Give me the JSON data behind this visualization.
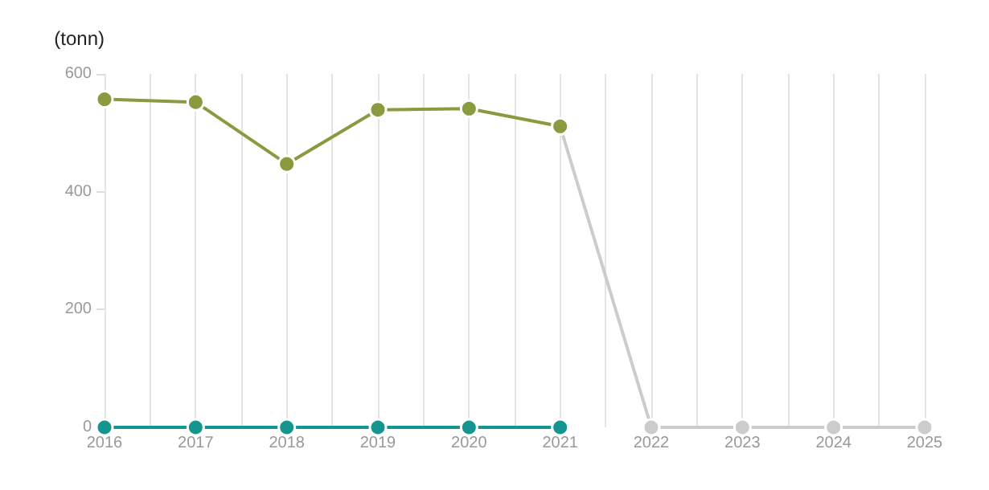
{
  "chart_data": {
    "type": "line",
    "ylabel": "(tonn)",
    "series": [
      {
        "color": "#cccccc",
        "x": [
          2021,
          2022,
          2023,
          2024,
          2025
        ],
        "values": [
          511,
          0,
          0,
          0,
          0
        ]
      },
      {
        "color": "#8a9a3f",
        "x": [
          2016,
          2017,
          2018,
          2019,
          2020,
          2021
        ],
        "values": [
          557,
          552,
          447,
          539,
          541,
          511
        ]
      },
      {
        "color": "#14958f",
        "x": [
          2016,
          2017,
          2018,
          2019,
          2020,
          2021
        ],
        "values": [
          0,
          0,
          0,
          0,
          0,
          0
        ]
      }
    ],
    "xlim": [
      2016,
      2025
    ],
    "xticks": [
      2016,
      {
        "value": 2016.5,
        "label": null
      },
      2017,
      {
        "value": 2017.5,
        "label": null
      },
      2018,
      {
        "value": 2018.5,
        "label": null
      },
      2019,
      {
        "value": 2019.5,
        "label": null
      },
      2020,
      {
        "value": 2020.5,
        "label": null
      },
      2021,
      {
        "value": 2021.5,
        "label": null
      },
      2022,
      {
        "value": 2022.5,
        "label": null
      },
      2023,
      {
        "value": 2023.5,
        "label": null
      },
      2024,
      {
        "value": 2024.5,
        "label": null
      },
      2025
    ],
    "ylim": [
      0,
      600
    ],
    "yticks": [
      0,
      200,
      400,
      600
    ],
    "grid": "x",
    "marker": "circle",
    "line_style": "solid"
  }
}
